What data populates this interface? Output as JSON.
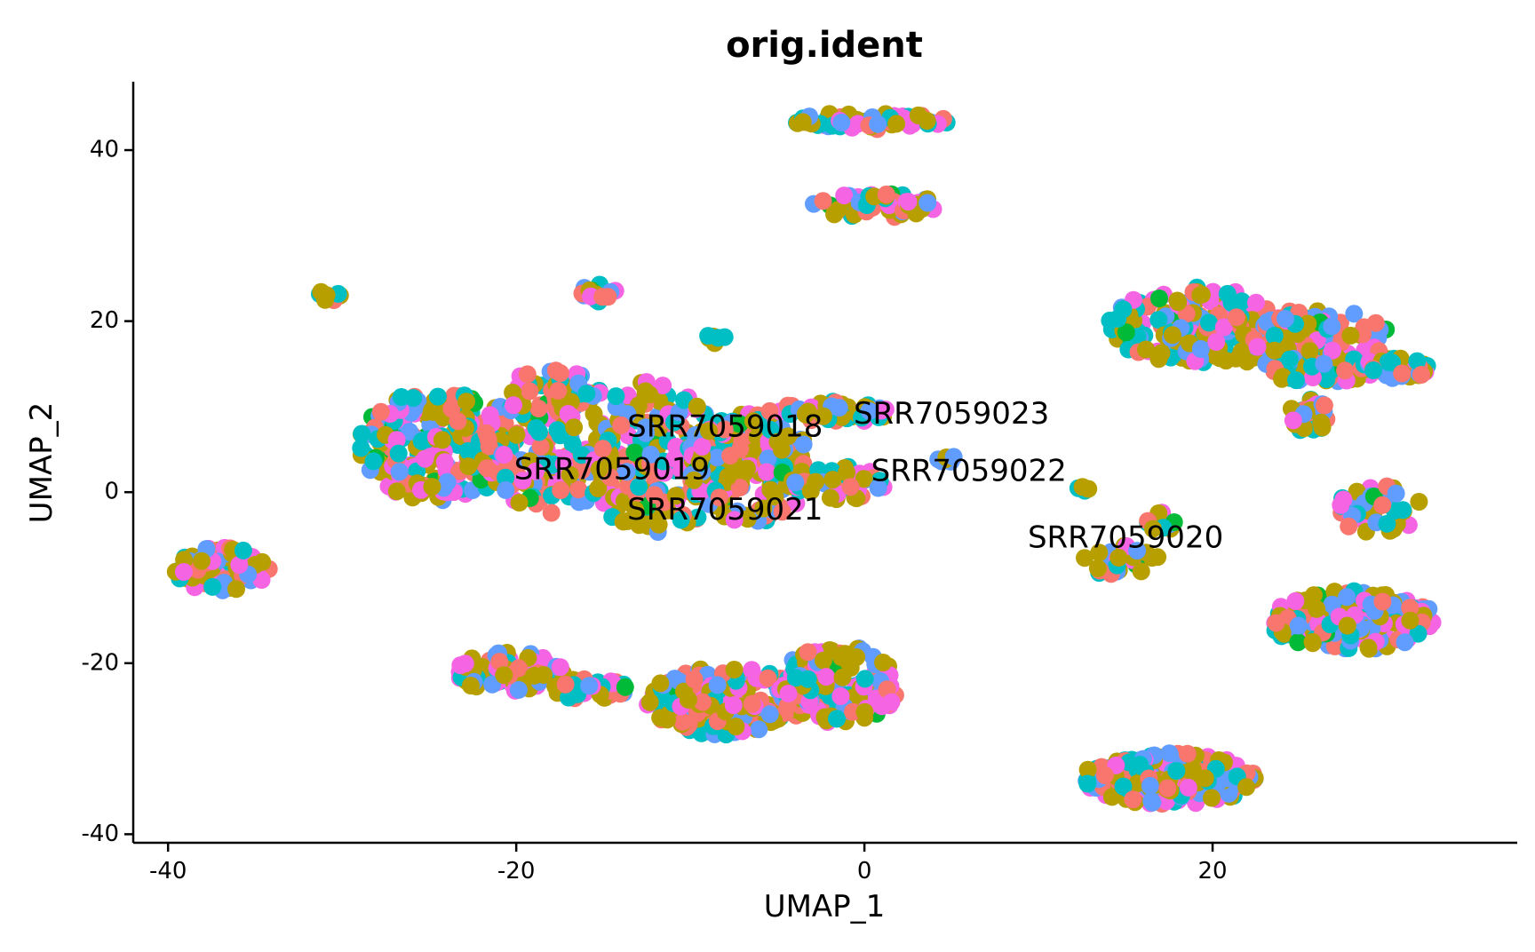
{
  "chart_data": {
    "type": "scatter",
    "title": "orig.ident",
    "xlabel": "UMAP_1",
    "ylabel": "UMAP_2",
    "xlim": [
      -42,
      37.5
    ],
    "ylim": [
      -41,
      48
    ],
    "xticks": [
      -40,
      -20,
      0,
      20
    ],
    "yticks": [
      -40,
      -20,
      0,
      20,
      40
    ],
    "grid": false,
    "legend": "none",
    "series": [
      {
        "name": "SRR7059018",
        "color": "#F8766D"
      },
      {
        "name": "SRR7059019",
        "color": "#B79F00"
      },
      {
        "name": "SRR7059020",
        "color": "#00BA38"
      },
      {
        "name": "SRR7059021",
        "color": "#00BFC4"
      },
      {
        "name": "SRR7059022",
        "color": "#619CFF"
      },
      {
        "name": "SRR7059023",
        "color": "#F564E3"
      }
    ],
    "clusters": [
      {
        "cx": 0.3,
        "cy": 43.4,
        "rx": 4.5,
        "ry": 1.0,
        "n": 55
      },
      {
        "cx": 0.5,
        "cy": 33.5,
        "rx": 3.8,
        "ry": 1.4,
        "n": 50
      },
      {
        "cx": -30.8,
        "cy": 23.0,
        "rx": 0.8,
        "ry": 0.6,
        "n": 8
      },
      {
        "cx": -15.3,
        "cy": 23.2,
        "rx": 1.2,
        "ry": 1.2,
        "n": 14
      },
      {
        "cx": -24.5,
        "cy": 5.5,
        "rx": 4.5,
        "ry": 6.5,
        "n": 220
      },
      {
        "cx": -18.0,
        "cy": 6.0,
        "rx": 4.0,
        "ry": 8.5,
        "n": 200
      },
      {
        "cx": -12.0,
        "cy": 4.0,
        "rx": 4.0,
        "ry": 9.0,
        "n": 200
      },
      {
        "cx": -6.5,
        "cy": 3.0,
        "rx": 3.5,
        "ry": 6.5,
        "n": 160
      },
      {
        "cx": -2.0,
        "cy": 9.5,
        "rx": 3.5,
        "ry": 1.5,
        "n": 50
      },
      {
        "cx": -1.5,
        "cy": 1.0,
        "rx": 3.0,
        "ry": 2.0,
        "n": 50
      },
      {
        "cx": -8.5,
        "cy": 18.0,
        "rx": 0.6,
        "ry": 0.6,
        "n": 6
      },
      {
        "cx": 4.8,
        "cy": 3.8,
        "rx": 0.6,
        "ry": 0.4,
        "n": 6
      },
      {
        "cx": 12.5,
        "cy": 0.5,
        "rx": 0.4,
        "ry": 0.4,
        "n": 4
      },
      {
        "cx": -37.0,
        "cy": -9.0,
        "rx": 2.8,
        "ry": 2.5,
        "n": 75
      },
      {
        "cx": -20.5,
        "cy": -21.0,
        "rx": 3.2,
        "ry": 2.3,
        "n": 80
      },
      {
        "cx": -16.0,
        "cy": -23.0,
        "rx": 2.5,
        "ry": 1.2,
        "n": 35
      },
      {
        "cx": -8.0,
        "cy": -24.5,
        "rx": 4.5,
        "ry": 4.0,
        "n": 170
      },
      {
        "cx": -1.5,
        "cy": -22.5,
        "rx": 3.5,
        "ry": 4.5,
        "n": 150
      },
      {
        "cx": 14.8,
        "cy": -8.0,
        "rx": 2.2,
        "ry": 1.8,
        "n": 30
      },
      {
        "cx": 17.0,
        "cy": -3.5,
        "rx": 0.8,
        "ry": 1.2,
        "n": 10
      },
      {
        "cx": 17.5,
        "cy": -33.5,
        "rx": 5.0,
        "ry": 3.0,
        "n": 200
      },
      {
        "cx": 19.0,
        "cy": 19.5,
        "rx": 5.0,
        "ry": 4.5,
        "n": 180
      },
      {
        "cx": 26.0,
        "cy": 17.0,
        "rx": 4.5,
        "ry": 4.5,
        "n": 160
      },
      {
        "cx": 30.5,
        "cy": 14.5,
        "rx": 2.0,
        "ry": 1.2,
        "n": 40
      },
      {
        "cx": 25.5,
        "cy": 9.0,
        "rx": 1.2,
        "ry": 2.0,
        "n": 30
      },
      {
        "cx": 29.5,
        "cy": -2.0,
        "rx": 2.5,
        "ry": 2.8,
        "n": 40
      },
      {
        "cx": 28.0,
        "cy": -15.0,
        "rx": 4.8,
        "ry": 3.5,
        "n": 170
      }
    ],
    "annotations": [
      {
        "text": "SRR7059018",
        "x": -8.0,
        "y": 7.5
      },
      {
        "text": "SRR7059023",
        "x": 5.0,
        "y": 9.0
      },
      {
        "text": "SRR7059019",
        "x": -14.5,
        "y": 2.5
      },
      {
        "text": "SRR7059022",
        "x": 6.0,
        "y": 2.3
      },
      {
        "text": "SRR7059021",
        "x": -8.0,
        "y": -2.2
      },
      {
        "text": "SRR7059020",
        "x": 15.0,
        "y": -5.5
      }
    ]
  }
}
